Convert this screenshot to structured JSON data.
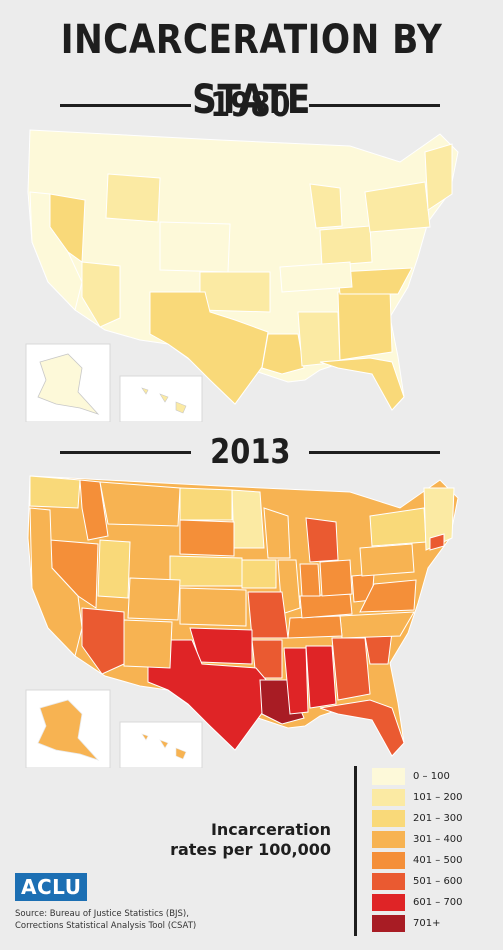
{
  "title": "INCARCERATION BY STATE",
  "map_1980": {
    "year": "1980"
  },
  "map_2013": {
    "year": "2013"
  },
  "legend": {
    "caption_line1": "Incarceration",
    "caption_line2": "rates per 100,000",
    "items": [
      {
        "label": "0  – 100",
        "color": "#fdf9d9"
      },
      {
        "label": "101 – 200",
        "color": "#fbeaa3"
      },
      {
        "label": "201 – 300",
        "color": "#f9d979"
      },
      {
        "label": "301 – 400",
        "color": "#f7b352"
      },
      {
        "label": "401 – 500",
        "color": "#f48f39"
      },
      {
        "label": "501 – 600",
        "color": "#ea5a31"
      },
      {
        "label": "601 – 700",
        "color": "#df2426"
      },
      {
        "label": "701+",
        "color": "#a81c24"
      }
    ]
  },
  "logo": {
    "text": "ACLU"
  },
  "source": {
    "line1": "Source: Bureau of Justice Statistics (BJS),",
    "line2": "Corrections Statistical Analysis Tool (CSAT)"
  }
}
